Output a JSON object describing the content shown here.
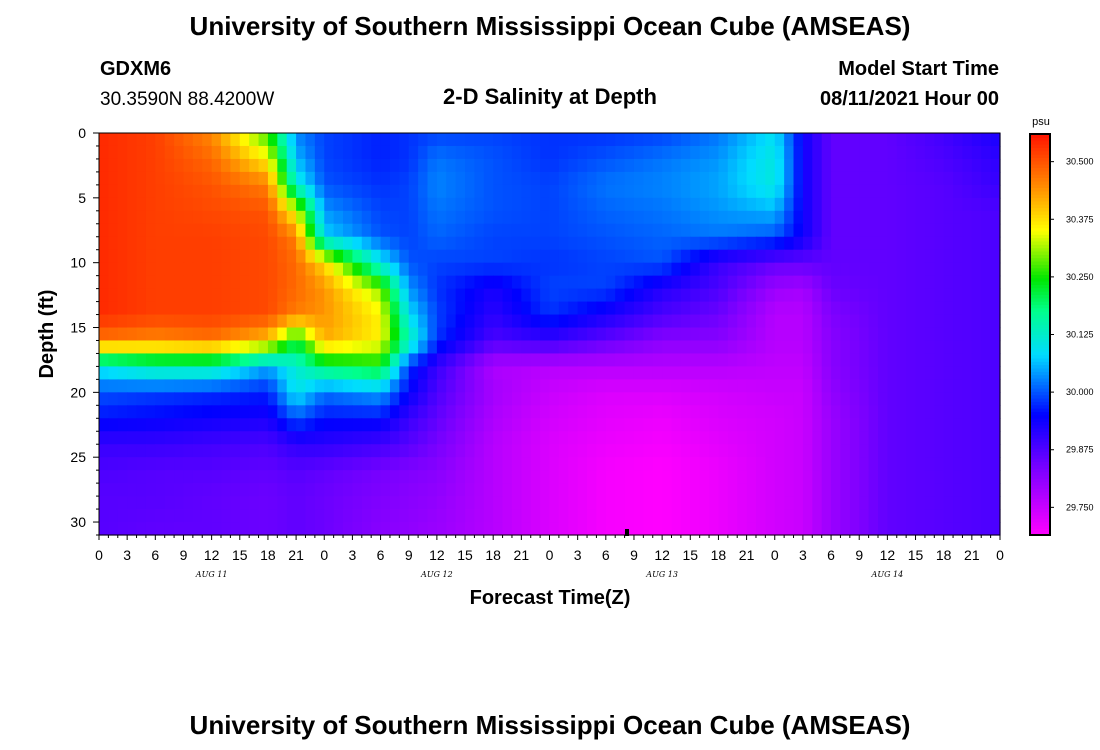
{
  "title_top": "University of Southern Mississippi Ocean Cube (AMSEAS)",
  "title_bottom": "University of Southern Mississippi Ocean Cube (AMSEAS)",
  "station": {
    "id": "GDXM6",
    "location": "30.3590N  88.4200W"
  },
  "chart_title": "2-D Salinity at Depth",
  "model_start": {
    "label": "Model Start Time",
    "value": "08/11/2021 Hour 00"
  },
  "chart_data": {
    "type": "heatmap",
    "title": "2-D Salinity at Depth",
    "xlabel": "Forecast Time(Z)",
    "ylabel": "Depth (ft)",
    "x_hours_range": [
      0,
      96
    ],
    "ylim": [
      0,
      31
    ],
    "y_inverted": true,
    "x_tick_hours": [
      0,
      3,
      6,
      9,
      12,
      15,
      18,
      21,
      24,
      27,
      30,
      33,
      36,
      39,
      42,
      45,
      48,
      51,
      54,
      57,
      60,
      63,
      66,
      69,
      72,
      75,
      78,
      81,
      84,
      87,
      90,
      93,
      96
    ],
    "x_tick_labels": [
      "0",
      "3",
      "6",
      "9",
      "12",
      "15",
      "18",
      "21",
      "0",
      "3",
      "6",
      "9",
      "12",
      "15",
      "18",
      "21",
      "0",
      "3",
      "6",
      "9",
      "12",
      "15",
      "18",
      "21",
      "0",
      "3",
      "6",
      "9",
      "12",
      "15",
      "18",
      "21",
      "0"
    ],
    "date_labels": [
      {
        "label": "AUG 11",
        "hour": 12
      },
      {
        "label": "AUG 12",
        "hour": 36
      },
      {
        "label": "AUG 13",
        "hour": 60
      },
      {
        "label": "AUG 14",
        "hour": 84
      }
    ],
    "y_ticks": [
      0,
      5,
      10,
      15,
      20,
      25,
      30
    ],
    "y_tick_labels": [
      "0",
      "5",
      "10",
      "15",
      "20",
      "25",
      "30"
    ],
    "colorbar": {
      "unit": "psu",
      "min": 29.69,
      "max": 30.56,
      "ticks": [
        29.75,
        29.875,
        30.0,
        30.125,
        30.25,
        30.375,
        30.5
      ],
      "tick_labels": [
        "29.750",
        "29.875",
        "30.000",
        "30.125",
        "30.250",
        "30.375",
        "30.500"
      ]
    },
    "depth_levels": [
      0,
      2,
      4,
      6,
      8,
      10,
      12,
      14,
      16,
      18,
      20,
      22,
      24,
      26,
      28,
      31
    ],
    "time_hours": [
      0,
      6,
      12,
      18,
      21,
      24,
      30,
      33,
      36,
      42,
      48,
      54,
      60,
      66,
      72,
      75,
      78,
      84,
      90,
      96
    ],
    "values": [
      [
        30.54,
        30.52,
        30.45,
        30.26,
        30.03,
        29.99,
        29.97,
        29.98,
        29.99,
        29.99,
        29.98,
        29.98,
        29.99,
        30.02,
        30.09,
        29.94,
        29.86,
        29.86,
        29.89,
        29.93
      ],
      [
        30.54,
        30.52,
        30.48,
        30.36,
        30.06,
        29.99,
        29.97,
        29.98,
        30.02,
        30.0,
        29.98,
        30.0,
        30.02,
        30.04,
        30.11,
        29.94,
        29.86,
        29.86,
        29.88,
        29.91
      ],
      [
        30.54,
        30.52,
        30.5,
        30.46,
        30.12,
        30.0,
        29.98,
        29.99,
        30.03,
        30.0,
        29.99,
        30.02,
        30.03,
        30.05,
        30.11,
        29.94,
        29.86,
        29.86,
        29.87,
        29.9
      ],
      [
        30.54,
        30.52,
        30.51,
        30.5,
        30.34,
        30.04,
        29.99,
        29.99,
        30.02,
        30.0,
        29.99,
        30.01,
        30.02,
        30.04,
        30.06,
        29.94,
        29.86,
        29.86,
        29.87,
        29.88
      ],
      [
        30.54,
        30.52,
        30.52,
        30.51,
        30.46,
        30.08,
        30.0,
        29.99,
        30.01,
        29.99,
        29.99,
        30.0,
        30.01,
        30.02,
        30.0,
        29.94,
        29.86,
        29.86,
        29.87,
        29.88
      ],
      [
        30.54,
        30.52,
        30.52,
        30.51,
        30.48,
        30.38,
        30.1,
        30.0,
        29.99,
        29.99,
        29.98,
        29.99,
        30.0,
        29.9,
        29.86,
        29.86,
        29.86,
        29.86,
        29.87,
        29.88
      ],
      [
        30.54,
        30.52,
        30.52,
        30.51,
        30.48,
        30.44,
        30.3,
        30.04,
        29.98,
        29.93,
        29.99,
        29.99,
        29.92,
        29.88,
        29.8,
        29.79,
        29.85,
        29.86,
        29.87,
        29.88
      ],
      [
        30.54,
        30.52,
        30.52,
        30.51,
        30.46,
        30.44,
        30.36,
        30.09,
        29.99,
        29.91,
        29.98,
        29.93,
        29.88,
        29.85,
        29.77,
        29.77,
        29.83,
        29.86,
        29.87,
        29.88
      ],
      [
        30.47,
        30.45,
        30.47,
        30.4,
        30.22,
        30.42,
        30.36,
        30.15,
        29.98,
        29.88,
        29.9,
        29.86,
        29.82,
        29.82,
        29.77,
        29.77,
        29.82,
        29.86,
        29.87,
        29.88
      ],
      [
        30.1,
        30.15,
        30.15,
        30.05,
        30.12,
        30.2,
        30.24,
        29.98,
        29.9,
        29.78,
        29.77,
        29.77,
        29.77,
        29.77,
        29.76,
        29.76,
        29.82,
        29.86,
        29.87,
        29.88
      ],
      [
        30.0,
        29.99,
        29.98,
        29.97,
        30.1,
        30.02,
        30.05,
        29.95,
        29.88,
        29.79,
        29.75,
        29.73,
        29.73,
        29.74,
        29.75,
        29.75,
        29.81,
        29.86,
        29.87,
        29.88
      ],
      [
        29.96,
        29.95,
        29.94,
        29.93,
        30.0,
        29.96,
        29.96,
        29.9,
        29.86,
        29.78,
        29.74,
        29.72,
        29.71,
        29.73,
        29.74,
        29.75,
        29.8,
        29.86,
        29.87,
        29.88
      ],
      [
        29.9,
        29.9,
        29.89,
        29.88,
        29.91,
        29.91,
        29.89,
        29.87,
        29.84,
        29.77,
        29.73,
        29.71,
        29.7,
        29.72,
        29.74,
        29.75,
        29.8,
        29.86,
        29.87,
        29.88
      ],
      [
        29.88,
        29.87,
        29.87,
        29.86,
        29.87,
        29.86,
        29.84,
        29.83,
        29.82,
        29.77,
        29.73,
        29.7,
        29.69,
        29.71,
        29.74,
        29.75,
        29.8,
        29.86,
        29.87,
        29.88
      ],
      [
        29.87,
        29.87,
        29.86,
        29.85,
        29.86,
        29.85,
        29.83,
        29.82,
        29.81,
        29.77,
        29.73,
        29.7,
        29.69,
        29.71,
        29.74,
        29.75,
        29.8,
        29.86,
        29.87,
        29.88
      ],
      [
        29.87,
        29.86,
        29.86,
        29.85,
        29.86,
        29.85,
        29.82,
        29.81,
        29.8,
        29.77,
        29.73,
        29.7,
        29.69,
        29.71,
        29.74,
        29.75,
        29.8,
        29.86,
        29.87,
        29.88
      ]
    ]
  }
}
